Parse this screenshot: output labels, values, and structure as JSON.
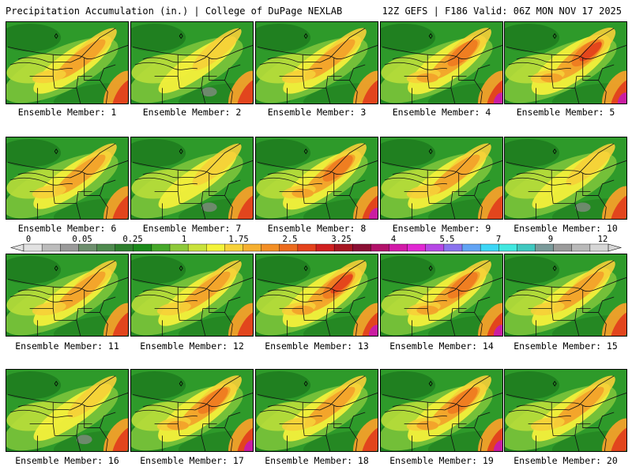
{
  "header": {
    "title_left": "Precipitation Accumulation (in.) | College of DuPage NEXLAB",
    "title_right": "12Z GEFS | F186 Valid: 06Z MON NOV 17 2025"
  },
  "colorbar": {
    "tick_labels": [
      "0",
      "0.05",
      "0.25",
      "1",
      "1.75",
      "2.5",
      "3.25",
      "4",
      "5.5",
      "7",
      "9",
      "12"
    ],
    "colors": [
      "#e2e2e2",
      "#bcbcbc",
      "#9a9a9a",
      "#6e8f6e",
      "#4e8a4e",
      "#2d7f2d",
      "#1a8a1a",
      "#45a82a",
      "#8ec93a",
      "#c9e23c",
      "#f3f33a",
      "#f7d23a",
      "#f6b030",
      "#f38f25",
      "#ec6b1d",
      "#e4421c",
      "#d01f1f",
      "#a71521",
      "#8b0f34",
      "#b2126a",
      "#d21aa8",
      "#e128d3",
      "#b648e6",
      "#8a73ee",
      "#62a4f4",
      "#3dd6f6",
      "#41e8e0",
      "#3fc8c0",
      "#7a9a9a",
      "#9b9b9b",
      "#b9b9b9",
      "#d6d6d6"
    ]
  },
  "panels": [
    {
      "label": "Ensemble Member: 1"
    },
    {
      "label": "Ensemble Member: 2"
    },
    {
      "label": "Ensemble Member: 3"
    },
    {
      "label": "Ensemble Member: 4"
    },
    {
      "label": "Ensemble Member: 5"
    },
    {
      "label": "Ensemble Member: 6"
    },
    {
      "label": "Ensemble Member: 7"
    },
    {
      "label": "Ensemble Member: 8"
    },
    {
      "label": "Ensemble Member: 9"
    },
    {
      "label": "Ensemble Member: 10"
    },
    {
      "label": "Ensemble Member: 11"
    },
    {
      "label": "Ensemble Member: 12"
    },
    {
      "label": "Ensemble Member: 13"
    },
    {
      "label": "Ensemble Member: 14"
    },
    {
      "label": "Ensemble Member: 15"
    },
    {
      "label": "Ensemble Member: 16"
    },
    {
      "label": "Ensemble Member: 17"
    },
    {
      "label": "Ensemble Member: 18"
    },
    {
      "label": "Ensemble Member: 19"
    },
    {
      "label": "Ensemble Member: 20"
    }
  ]
}
